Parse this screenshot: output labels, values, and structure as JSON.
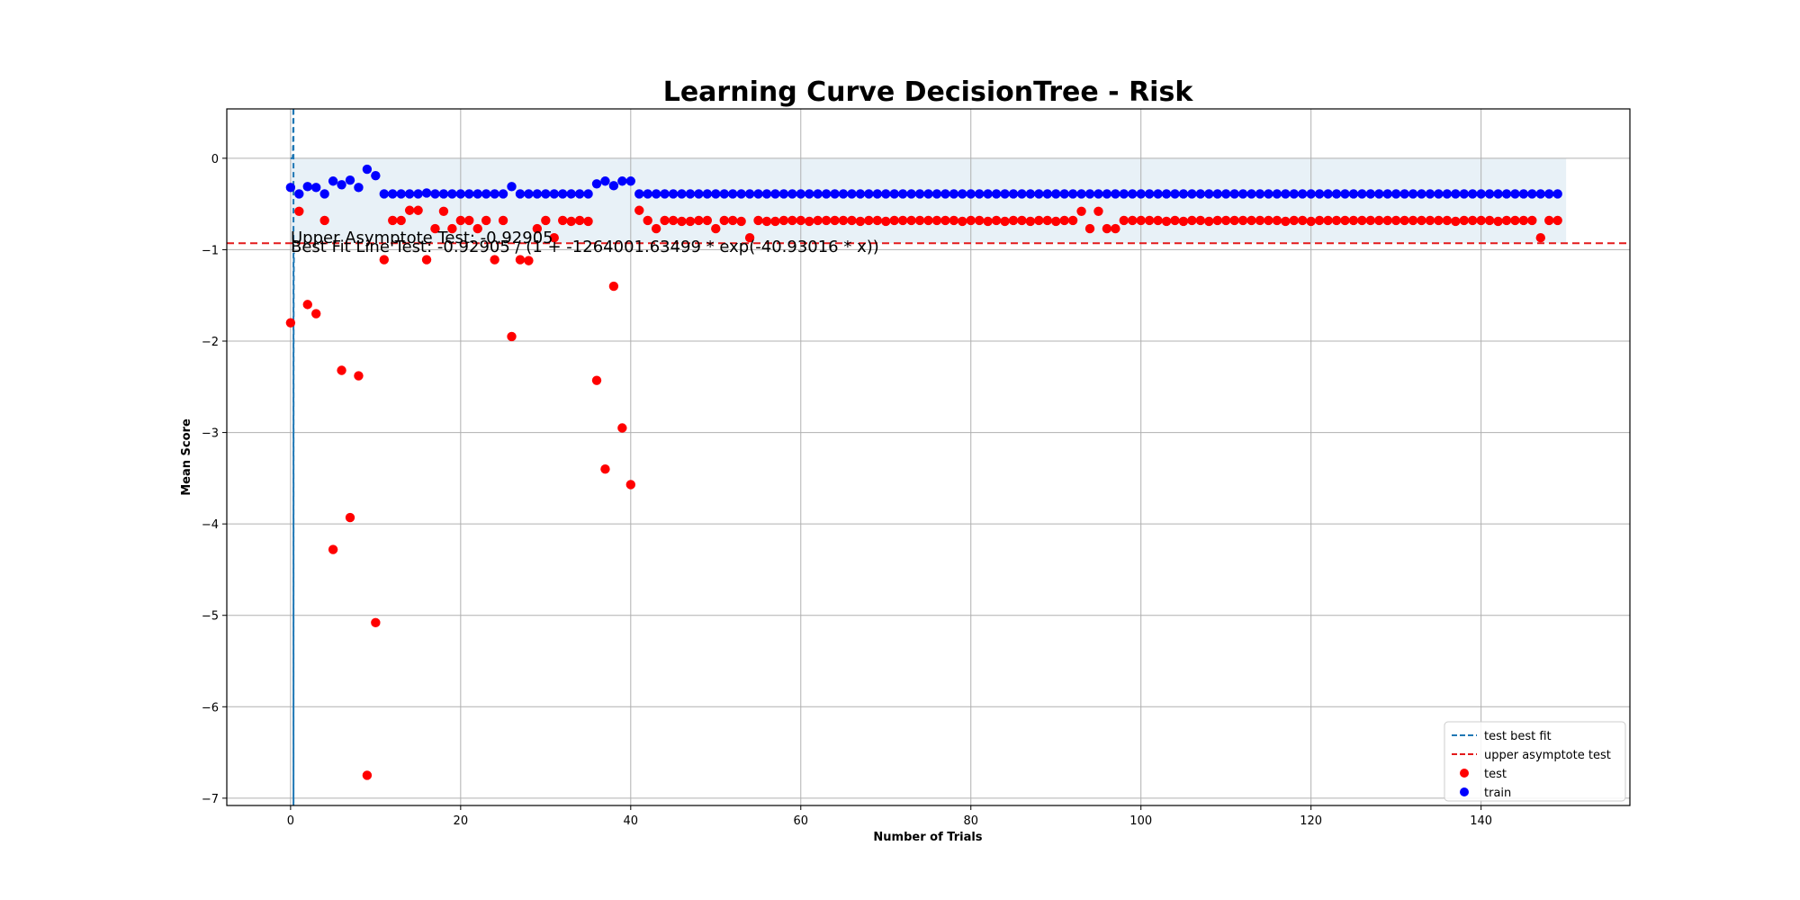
{
  "chart_data": {
    "type": "scatter",
    "title": "Learning Curve DecisionTree - Risk",
    "xlabel": "Number of Trials",
    "ylabel": "Mean Score",
    "xlim": [
      -7.5,
      157.5
    ],
    "ylim": [
      -7.08,
      0.54
    ],
    "xticks": [
      0,
      20,
      40,
      60,
      80,
      100,
      120,
      140
    ],
    "yticks": [
      0,
      -1,
      -2,
      -3,
      -4,
      -5,
      -6,
      -7
    ],
    "xtick_labels": [
      "0",
      "20",
      "40",
      "60",
      "80",
      "100",
      "120",
      "140"
    ],
    "ytick_labels": [
      "0",
      "−1",
      "−2",
      "−3",
      "−4",
      "−5",
      "−6",
      "−7"
    ],
    "grid": true,
    "legend_position": "lower-right",
    "upper_asymptote": -0.92905,
    "band": {
      "x_start": 0,
      "x_end": 150,
      "y_low": -0.92905,
      "y_high": 0
    },
    "best_fit": {
      "a": -0.92905,
      "b": -1264001.63499,
      "c": -40.93016,
      "x_range": [
        0,
        0.4
      ]
    },
    "annotations": [
      "Upper Asymptote Test: -0.92905",
      "Best Fit Line Test: -0.92905 / (1 + -1264001.63499 * exp(-40.93016 * x))"
    ],
    "legend": [
      {
        "label": "test best fit",
        "style": "dashed-line",
        "color": "#1f77b4"
      },
      {
        "label": "upper asymptote test",
        "style": "dashed-line",
        "color": "#e31a1c"
      },
      {
        "label": "test",
        "style": "marker",
        "color": "#ff0000"
      },
      {
        "label": "train",
        "style": "marker",
        "color": "#0000ff"
      }
    ],
    "series": [
      {
        "name": "test",
        "color": "#ff0000",
        "x_start": 0,
        "values": [
          -1.8,
          -0.58,
          -1.6,
          -1.7,
          -0.68,
          -4.28,
          -2.32,
          -3.93,
          -2.38,
          -6.75,
          -5.08,
          -1.11,
          -0.68,
          -0.68,
          -0.57,
          -0.57,
          -1.11,
          -0.77,
          -0.58,
          -0.77,
          -0.68,
          -0.68,
          -0.77,
          -0.68,
          -1.11,
          -0.68,
          -1.95,
          -1.11,
          -1.12,
          -0.77,
          -0.68,
          -0.87,
          -0.68,
          -0.69,
          -0.68,
          -0.69,
          -2.43,
          -3.4,
          -1.4,
          -2.95,
          -3.57,
          -0.57,
          -0.68,
          -0.77,
          -0.68,
          -0.68,
          -0.69,
          -0.69,
          -0.68,
          -0.68,
          -0.77,
          -0.68,
          -0.68,
          -0.69,
          -0.87,
          -0.68,
          -0.69,
          -0.69,
          -0.68,
          -0.68,
          -0.68,
          -0.69,
          -0.68,
          -0.68,
          -0.68,
          -0.68,
          -0.68,
          -0.69,
          -0.68,
          -0.68,
          -0.69,
          -0.68,
          -0.68,
          -0.68,
          -0.68,
          -0.68,
          -0.68,
          -0.68,
          -0.68,
          -0.69,
          -0.68,
          -0.68,
          -0.69,
          -0.68,
          -0.69,
          -0.68,
          -0.68,
          -0.69,
          -0.68,
          -0.68,
          -0.69,
          -0.68,
          -0.68,
          -0.58,
          -0.77,
          -0.58,
          -0.77,
          -0.77,
          -0.68,
          -0.68,
          -0.68,
          -0.68,
          -0.68,
          -0.69,
          -0.68,
          -0.69,
          -0.68,
          -0.68,
          -0.69,
          -0.68,
          -0.68,
          -0.68,
          -0.68,
          -0.68,
          -0.68,
          -0.68,
          -0.68,
          -0.69,
          -0.68,
          -0.68,
          -0.69,
          -0.68,
          -0.68,
          -0.68,
          -0.68,
          -0.68,
          -0.68,
          -0.68,
          -0.68,
          -0.68,
          -0.68,
          -0.68,
          -0.68,
          -0.68,
          -0.68,
          -0.68,
          -0.68,
          -0.69,
          -0.68,
          -0.68,
          -0.68,
          -0.68,
          -0.69,
          -0.68,
          -0.68,
          -0.68,
          -0.68,
          -0.87,
          -0.68,
          -0.68
        ]
      },
      {
        "name": "train",
        "color": "#0000ff",
        "x_start": 0,
        "values": [
          -0.32,
          -0.39,
          -0.31,
          -0.32,
          -0.39,
          -0.25,
          -0.29,
          -0.24,
          -0.32,
          -0.12,
          -0.19,
          -0.39,
          -0.39,
          -0.39,
          -0.39,
          -0.39,
          -0.38,
          -0.39,
          -0.39,
          -0.39,
          -0.39,
          -0.39,
          -0.39,
          -0.39,
          -0.39,
          -0.39,
          -0.31,
          -0.39,
          -0.39,
          -0.39,
          -0.39,
          -0.39,
          -0.39,
          -0.39,
          -0.39,
          -0.39,
          -0.28,
          -0.25,
          -0.3,
          -0.25,
          -0.25,
          -0.39,
          -0.39,
          -0.39,
          -0.39,
          -0.39,
          -0.39,
          -0.39,
          -0.39,
          -0.39,
          -0.39,
          -0.39,
          -0.39,
          -0.39,
          -0.39,
          -0.39,
          -0.39,
          -0.39,
          -0.39,
          -0.39,
          -0.39,
          -0.39,
          -0.39,
          -0.39,
          -0.39,
          -0.39,
          -0.39,
          -0.39,
          -0.39,
          -0.39,
          -0.39,
          -0.39,
          -0.39,
          -0.39,
          -0.39,
          -0.39,
          -0.39,
          -0.39,
          -0.39,
          -0.39,
          -0.39,
          -0.39,
          -0.39,
          -0.39,
          -0.39,
          -0.39,
          -0.39,
          -0.39,
          -0.39,
          -0.39,
          -0.39,
          -0.39,
          -0.39,
          -0.39,
          -0.39,
          -0.39,
          -0.39,
          -0.39,
          -0.39,
          -0.39,
          -0.39,
          -0.39,
          -0.39,
          -0.39,
          -0.39,
          -0.39,
          -0.39,
          -0.39,
          -0.39,
          -0.39,
          -0.39,
          -0.39,
          -0.39,
          -0.39,
          -0.39,
          -0.39,
          -0.39,
          -0.39,
          -0.39,
          -0.39,
          -0.39,
          -0.39,
          -0.39,
          -0.39,
          -0.39,
          -0.39,
          -0.39,
          -0.39,
          -0.39,
          -0.39,
          -0.39,
          -0.39,
          -0.39,
          -0.39,
          -0.39,
          -0.39,
          -0.39,
          -0.39,
          -0.39,
          -0.39,
          -0.39,
          -0.39,
          -0.39,
          -0.39,
          -0.39,
          -0.39,
          -0.39,
          -0.39,
          -0.39,
          -0.39
        ]
      }
    ]
  }
}
